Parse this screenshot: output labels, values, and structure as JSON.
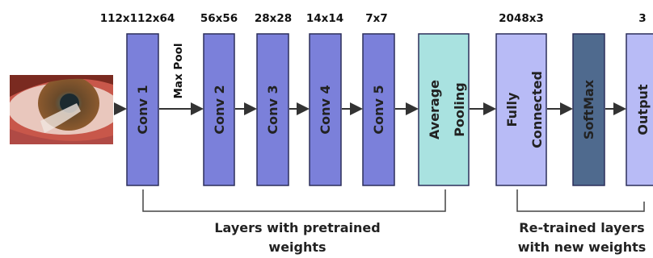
{
  "dimensions": [
    "112x112x64",
    "56x56",
    "28x28",
    "14x14",
    "7x7",
    "2048x3",
    "3"
  ],
  "layers": [
    {
      "lines": [
        "Conv 1"
      ]
    },
    {
      "lines": [
        "Conv 2"
      ]
    },
    {
      "lines": [
        "Conv 3"
      ]
    },
    {
      "lines": [
        "Conv 4"
      ]
    },
    {
      "lines": [
        "Conv 5"
      ]
    },
    {
      "lines": [
        "Average",
        "Pooling"
      ]
    },
    {
      "lines": [
        "Fully",
        "Connected"
      ]
    },
    {
      "lines": [
        "SoftMax"
      ]
    },
    {
      "lines": [
        "Output"
      ]
    }
  ],
  "annotation": "Max Pool",
  "groups": [
    {
      "lines": [
        "Layers with pretrained",
        "weights"
      ]
    },
    {
      "lines": [
        "Re-trained layers",
        "with new weights"
      ]
    }
  ]
}
